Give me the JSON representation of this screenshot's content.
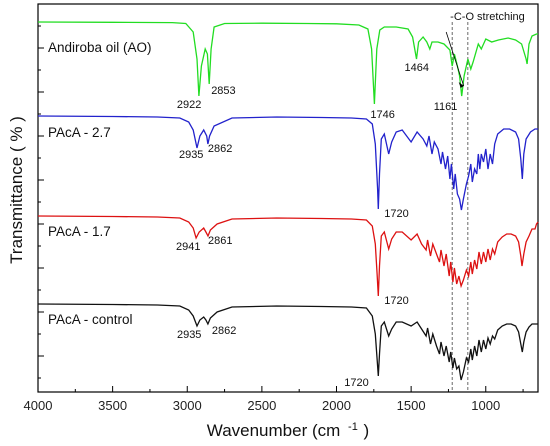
{
  "chart_data": {
    "type": "line",
    "xlabel": "Wavenumber (cm",
    "xlabel_sup": "-1",
    "xlabel_close": ")",
    "ylabel": "Transmittance ( % )",
    "xlim": [
      4000,
      650
    ],
    "x_reversed": true,
    "x_ticks": [
      4000,
      3500,
      3000,
      2500,
      2000,
      1500,
      1000
    ],
    "y_ticks_shown": false,
    "legend": "none",
    "annotation": {
      "text": "-C-O stretching",
      "arrow_target": 1161,
      "dashed_lines": [
        1225,
        1120
      ]
    },
    "series": [
      {
        "name": "Andiroba oil (AO)",
        "color": "#22dd22",
        "baseline": 18,
        "points": [
          [
            4000,
            18
          ],
          [
            3500,
            18.3
          ],
          [
            3100,
            18.6
          ],
          [
            3010,
            19.5
          ],
          [
            2960,
            28
          ],
          [
            2935,
            55
          ],
          [
            2922,
            92
          ],
          [
            2905,
            62
          ],
          [
            2880,
            45
          ],
          [
            2865,
            50
          ],
          [
            2853,
            80
          ],
          [
            2840,
            45
          ],
          [
            2820,
            23
          ],
          [
            2750,
            19.5
          ],
          [
            2500,
            19.2
          ],
          [
            2200,
            19.5
          ],
          [
            2000,
            19.8
          ],
          [
            1850,
            21
          ],
          [
            1790,
            25
          ],
          [
            1765,
            45
          ],
          [
            1746,
            100
          ],
          [
            1730,
            45
          ],
          [
            1710,
            26
          ],
          [
            1680,
            23
          ],
          [
            1600,
            23
          ],
          [
            1520,
            25
          ],
          [
            1490,
            33
          ],
          [
            1464,
            55
          ],
          [
            1450,
            38
          ],
          [
            1420,
            33
          ],
          [
            1395,
            38
          ],
          [
            1375,
            45
          ],
          [
            1360,
            38
          ],
          [
            1320,
            38
          ],
          [
            1280,
            40
          ],
          [
            1240,
            46
          ],
          [
            1225,
            62
          ],
          [
            1210,
            50
          ],
          [
            1190,
            62
          ],
          [
            1175,
            72
          ],
          [
            1161,
            92
          ],
          [
            1145,
            72
          ],
          [
            1120,
            55
          ],
          [
            1100,
            65
          ],
          [
            1085,
            58
          ],
          [
            1050,
            40
          ],
          [
            1030,
            45
          ],
          [
            1000,
            35
          ],
          [
            960,
            38
          ],
          [
            915,
            36
          ],
          [
            850,
            34
          ],
          [
            800,
            36
          ],
          [
            760,
            40
          ],
          [
            730,
            55
          ],
          [
            723,
            60
          ],
          [
            710,
            40
          ],
          [
            690,
            32
          ],
          [
            660,
            30
          ],
          [
            650,
            30
          ]
        ],
        "label_peaks": [
          {
            "text": "2922",
            "x": 2922
          },
          {
            "text": "2853",
            "x": 2853
          },
          {
            "text": "1746",
            "x": 1746
          },
          {
            "text": "1464",
            "x": 1464
          },
          {
            "text": "1161",
            "x": 1161
          }
        ]
      },
      {
        "name": "PAcA - 2.7",
        "color": "#2222cc",
        "baseline": 112,
        "points": [
          [
            4000,
            112
          ],
          [
            3500,
            112.5
          ],
          [
            3200,
            113
          ],
          [
            3050,
            114
          ],
          [
            2990,
            118
          ],
          [
            2960,
            126
          ],
          [
            2935,
            144
          ],
          [
            2915,
            132
          ],
          [
            2890,
            126
          ],
          [
            2870,
            132
          ],
          [
            2862,
            140
          ],
          [
            2850,
            132
          ],
          [
            2820,
            122
          ],
          [
            2700,
            114
          ],
          [
            2400,
            113
          ],
          [
            2100,
            113.5
          ],
          [
            1900,
            114
          ],
          [
            1800,
            115
          ],
          [
            1760,
            120
          ],
          [
            1740,
            140
          ],
          [
            1725,
            185
          ],
          [
            1720,
            205
          ],
          [
            1712,
            170
          ],
          [
            1700,
            135
          ],
          [
            1680,
            130
          ],
          [
            1650,
            150
          ],
          [
            1630,
            138
          ],
          [
            1600,
            128
          ],
          [
            1560,
            126
          ],
          [
            1500,
            138
          ],
          [
            1460,
            128
          ],
          [
            1420,
            135
          ],
          [
            1395,
            142
          ],
          [
            1380,
            132
          ],
          [
            1360,
            150
          ],
          [
            1345,
            138
          ],
          [
            1320,
            145
          ],
          [
            1300,
            160
          ],
          [
            1290,
            148
          ],
          [
            1270,
            165
          ],
          [
            1255,
            152
          ],
          [
            1240,
            175
          ],
          [
            1230,
            160
          ],
          [
            1215,
            185
          ],
          [
            1205,
            170
          ],
          [
            1190,
            190
          ],
          [
            1175,
            195
          ],
          [
            1163,
            206
          ],
          [
            1150,
            195
          ],
          [
            1130,
            180
          ],
          [
            1115,
            172
          ],
          [
            1100,
            160
          ],
          [
            1090,
            178
          ],
          [
            1075,
            165
          ],
          [
            1060,
            170
          ],
          [
            1050,
            150
          ],
          [
            1040,
            165
          ],
          [
            1030,
            150
          ],
          [
            1015,
            158
          ],
          [
            1000,
            145
          ],
          [
            985,
            165
          ],
          [
            970,
            150
          ],
          [
            955,
            160
          ],
          [
            940,
            140
          ],
          [
            920,
            130
          ],
          [
            880,
            125
          ],
          [
            840,
            125
          ],
          [
            800,
            128
          ],
          [
            780,
            135
          ],
          [
            765,
            155
          ],
          [
            755,
            175
          ],
          [
            745,
            150
          ],
          [
            730,
            135
          ],
          [
            700,
            128
          ],
          [
            670,
            125
          ],
          [
            650,
            125
          ]
        ],
        "label_peaks": [
          {
            "text": "2935",
            "x": 2935
          },
          {
            "text": "2862",
            "x": 2862
          },
          {
            "text": "1720",
            "x": 1720
          }
        ]
      },
      {
        "name": "PAcA - 1.7",
        "color": "#dd1111",
        "baseline": 212,
        "points": [
          [
            4000,
            212
          ],
          [
            3500,
            212.5
          ],
          [
            3200,
            213
          ],
          [
            3050,
            214
          ],
          [
            2990,
            218
          ],
          [
            2960,
            224
          ],
          [
            2941,
            234
          ],
          [
            2920,
            228
          ],
          [
            2890,
            224
          ],
          [
            2875,
            228
          ],
          [
            2861,
            232
          ],
          [
            2845,
            226
          ],
          [
            2800,
            220
          ],
          [
            2700,
            215
          ],
          [
            2400,
            214
          ],
          [
            2100,
            214.5
          ],
          [
            1900,
            215
          ],
          [
            1800,
            216
          ],
          [
            1760,
            222
          ],
          [
            1740,
            240
          ],
          [
            1728,
            270
          ],
          [
            1720,
            292
          ],
          [
            1712,
            262
          ],
          [
            1700,
            232
          ],
          [
            1680,
            228
          ],
          [
            1650,
            245
          ],
          [
            1630,
            235
          ],
          [
            1600,
            228
          ],
          [
            1560,
            228
          ],
          [
            1500,
            236
          ],
          [
            1460,
            230
          ],
          [
            1430,
            240
          ],
          [
            1400,
            246
          ],
          [
            1390,
            236
          ],
          [
            1370,
            252
          ],
          [
            1355,
            240
          ],
          [
            1330,
            250
          ],
          [
            1310,
            258
          ],
          [
            1300,
            246
          ],
          [
            1280,
            262
          ],
          [
            1265,
            250
          ],
          [
            1245,
            272
          ],
          [
            1235,
            258
          ],
          [
            1220,
            278
          ],
          [
            1210,
            264
          ],
          [
            1195,
            280
          ],
          [
            1180,
            272
          ],
          [
            1165,
            282
          ],
          [
            1150,
            276
          ],
          [
            1130,
            266
          ],
          [
            1115,
            272
          ],
          [
            1100,
            258
          ],
          [
            1090,
            270
          ],
          [
            1075,
            256
          ],
          [
            1060,
            265
          ],
          [
            1045,
            248
          ],
          [
            1030,
            260
          ],
          [
            1015,
            248
          ],
          [
            1000,
            258
          ],
          [
            985,
            245
          ],
          [
            970,
            256
          ],
          [
            955,
            245
          ],
          [
            940,
            250
          ],
          [
            920,
            238
          ],
          [
            890,
            233
          ],
          [
            860,
            230
          ],
          [
            830,
            230
          ],
          [
            800,
            232
          ],
          [
            780,
            238
          ],
          [
            765,
            252
          ],
          [
            757,
            262
          ],
          [
            745,
            250
          ],
          [
            730,
            238
          ],
          [
            710,
            232
          ],
          [
            690,
            225
          ],
          [
            670,
            225
          ],
          [
            660,
            220
          ],
          [
            650,
            218
          ]
        ],
        "label_peaks": [
          {
            "text": "2941",
            "x": 2941
          },
          {
            "text": "2861",
            "x": 2861
          },
          {
            "text": "1720",
            "x": 1720
          }
        ]
      },
      {
        "name": "PAcA -  control",
        "color": "#111111",
        "baseline": 300,
        "points": [
          [
            4000,
            300
          ],
          [
            3500,
            300.5
          ],
          [
            3200,
            301
          ],
          [
            3050,
            302
          ],
          [
            2990,
            306
          ],
          [
            2960,
            312
          ],
          [
            2935,
            322
          ],
          [
            2915,
            316
          ],
          [
            2890,
            313
          ],
          [
            2875,
            316
          ],
          [
            2862,
            320
          ],
          [
            2845,
            314
          ],
          [
            2800,
            308
          ],
          [
            2700,
            303
          ],
          [
            2400,
            302
          ],
          [
            2100,
            302.5
          ],
          [
            1900,
            303
          ],
          [
            1800,
            304
          ],
          [
            1760,
            312
          ],
          [
            1740,
            330
          ],
          [
            1728,
            355
          ],
          [
            1720,
            372
          ],
          [
            1712,
            350
          ],
          [
            1700,
            322
          ],
          [
            1680,
            318
          ],
          [
            1650,
            332
          ],
          [
            1630,
            325
          ],
          [
            1600,
            318
          ],
          [
            1560,
            318
          ],
          [
            1500,
            322
          ],
          [
            1460,
            318
          ],
          [
            1430,
            325
          ],
          [
            1400,
            332
          ],
          [
            1390,
            324
          ],
          [
            1370,
            340
          ],
          [
            1355,
            330
          ],
          [
            1330,
            342
          ],
          [
            1310,
            350
          ],
          [
            1300,
            338
          ],
          [
            1280,
            352
          ],
          [
            1265,
            342
          ],
          [
            1245,
            358
          ],
          [
            1235,
            348
          ],
          [
            1220,
            364
          ],
          [
            1210,
            354
          ],
          [
            1195,
            365
          ],
          [
            1180,
            362
          ],
          [
            1165,
            376
          ],
          [
            1150,
            368
          ],
          [
            1130,
            354
          ],
          [
            1115,
            358
          ],
          [
            1100,
            345
          ],
          [
            1090,
            356
          ],
          [
            1075,
            342
          ],
          [
            1060,
            352
          ],
          [
            1045,
            336
          ],
          [
            1030,
            348
          ],
          [
            1015,
            336
          ],
          [
            1000,
            345
          ],
          [
            985,
            334
          ],
          [
            970,
            340
          ],
          [
            955,
            332
          ],
          [
            940,
            335
          ],
          [
            920,
            326
          ],
          [
            890,
            322
          ],
          [
            860,
            320
          ],
          [
            830,
            320
          ],
          [
            800,
            322
          ],
          [
            780,
            328
          ],
          [
            765,
            340
          ],
          [
            755,
            348
          ],
          [
            745,
            338
          ],
          [
            730,
            328
          ],
          [
            710,
            323
          ],
          [
            690,
            320
          ],
          [
            670,
            320
          ],
          [
            650,
            320
          ]
        ],
        "label_peaks": [
          {
            "text": "2935",
            "x": 2935
          },
          {
            "text": "2862",
            "x": 2862
          },
          {
            "text": "1720",
            "x": 1720
          }
        ]
      }
    ]
  }
}
